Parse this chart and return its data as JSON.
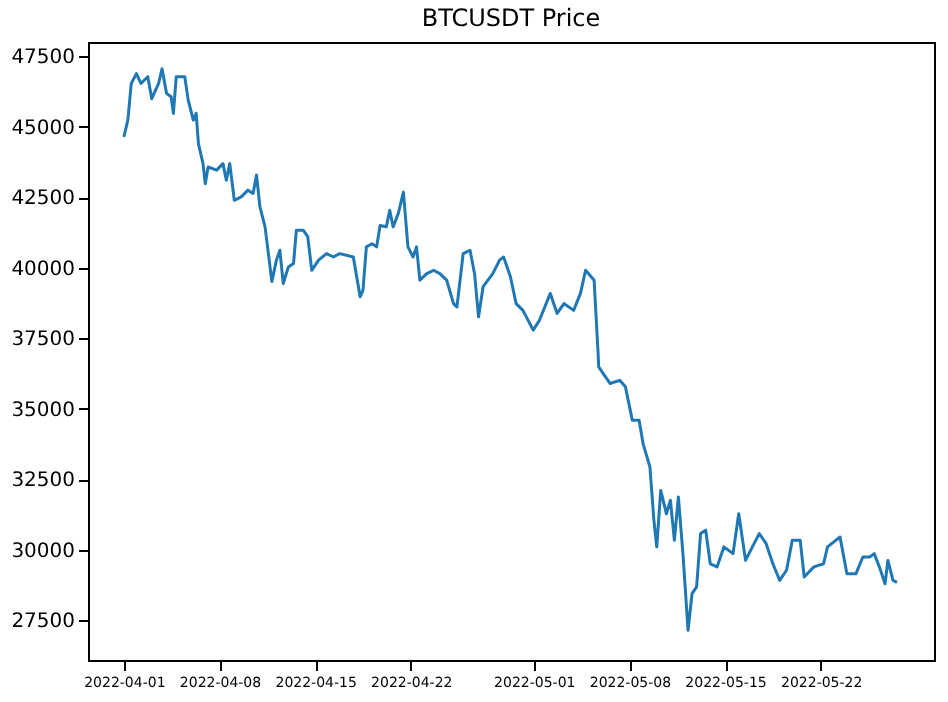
{
  "chart_data": {
    "type": "line",
    "title": "BTCUSDT Price",
    "x": [
      "2022-04-01T00:00",
      "2022-04-01T07:00",
      "2022-04-01T13:00",
      "2022-04-01T22:00",
      "2022-04-02T06:00",
      "2022-04-02T18:00",
      "2022-04-03T01:00",
      "2022-04-03T13:00",
      "2022-04-03T19:00",
      "2022-04-04T03:00",
      "2022-04-04T11:00",
      "2022-04-04T15:00",
      "2022-04-04T20:00",
      "2022-04-05T11:00",
      "2022-04-05T17:00",
      "2022-04-06T02:00",
      "2022-04-06T07:00",
      "2022-04-06T11:00",
      "2022-04-06T19:00",
      "2022-04-06T23:00",
      "2022-04-07T04:00",
      "2022-04-07T19:00",
      "2022-04-08T06:00",
      "2022-04-08T12:00",
      "2022-04-08T18:00",
      "2022-04-09T02:00",
      "2022-04-09T14:00",
      "2022-04-10T02:00",
      "2022-04-10T11:00",
      "2022-04-10T17:00",
      "2022-04-10T23:00",
      "2022-04-11T08:00",
      "2022-04-11T20:00",
      "2022-04-12T04:00",
      "2022-04-12T10:00",
      "2022-04-12T16:00",
      "2022-04-13T01:00",
      "2022-04-13T10:00",
      "2022-04-13T15:00",
      "2022-04-14T03:00",
      "2022-04-14T11:00",
      "2022-04-14T18:00",
      "2022-04-15T06:00",
      "2022-04-15T20:00",
      "2022-04-16T08:00",
      "2022-04-16T19:00",
      "2022-04-17T19:00",
      "2022-04-18T07:00",
      "2022-04-18T12:00",
      "2022-04-18T18:00",
      "2022-04-19T04:00",
      "2022-04-19T12:00",
      "2022-04-19T18:00",
      "2022-04-20T05:00",
      "2022-04-20T11:00",
      "2022-04-20T17:00",
      "2022-04-21T02:00",
      "2022-04-21T11:00",
      "2022-04-21T19:00",
      "2022-04-22T04:00",
      "2022-04-22T10:00",
      "2022-04-22T16:00",
      "2022-04-23T04:00",
      "2022-04-23T16:00",
      "2022-04-24T03:00",
      "2022-04-24T15:00",
      "2022-04-25T03:00",
      "2022-04-25T09:00",
      "2022-04-25T20:00",
      "2022-04-26T08:00",
      "2022-04-26T16:00",
      "2022-04-26T23:00",
      "2022-04-27T07:00",
      "2022-04-28T00:00",
      "2022-04-28T12:00",
      "2022-04-28T19:00",
      "2022-04-29T07:00",
      "2022-04-29T17:00",
      "2022-04-30T05:00",
      "2022-04-30T23:00",
      "2022-05-01T10:00",
      "2022-05-02T05:00",
      "2022-05-02T17:00",
      "2022-05-03T05:00",
      "2022-05-03T22:00",
      "2022-05-04T10:00",
      "2022-05-04T19:00",
      "2022-05-05T10:00",
      "2022-05-05T17:00",
      "2022-05-05T18:00",
      "2022-05-06T02:00",
      "2022-05-06T14:00",
      "2022-05-07T07:00",
      "2022-05-07T17:00",
      "2022-05-08T05:00",
      "2022-05-08T17:00",
      "2022-05-09T00:00",
      "2022-05-09T12:00",
      "2022-05-09T19:00",
      "2022-05-10T00:00",
      "2022-05-10T07:00",
      "2022-05-10T17:00",
      "2022-05-11T00:00",
      "2022-05-11T07:00",
      "2022-05-11T14:00",
      "2022-05-11T22:00",
      "2022-05-12T07:00",
      "2022-05-12T14:00",
      "2022-05-12T22:00",
      "2022-05-13T05:00",
      "2022-05-13T14:00",
      "2022-05-13T22:00",
      "2022-05-14T10:00",
      "2022-05-14T22:00",
      "2022-05-15T14:00",
      "2022-05-16T00:00",
      "2022-05-16T12:00",
      "2022-05-17T00:00",
      "2022-05-17T12:00",
      "2022-05-18T00:00",
      "2022-05-18T12:00",
      "2022-05-19T00:00",
      "2022-05-19T12:00",
      "2022-05-19T22:00",
      "2022-05-20T12:00",
      "2022-05-20T19:00",
      "2022-05-21T12:00",
      "2022-05-22T05:00",
      "2022-05-22T12:00",
      "2022-05-23T10:00",
      "2022-05-23T22:00",
      "2022-05-24T14:00",
      "2022-05-25T02:00",
      "2022-05-25T14:00",
      "2022-05-25T22:00",
      "2022-05-26T07:00",
      "2022-05-26T17:00",
      "2022-05-26T22:00",
      "2022-05-27T07:00",
      "2022-05-27T14:00"
    ],
    "series": [
      {
        "color": "#1f77b4",
        "values": [
          44640,
          45230,
          46530,
          46880,
          46530,
          46770,
          45990,
          46530,
          47050,
          46180,
          46060,
          45470,
          46770,
          46770,
          45940,
          45230,
          45470,
          44400,
          43690,
          42980,
          43570,
          43460,
          43690,
          43100,
          43690,
          42390,
          42510,
          42750,
          42630,
          43290,
          42160,
          41450,
          39510,
          40270,
          40620,
          39440,
          40030,
          40150,
          41330,
          41330,
          41100,
          39910,
          40270,
          40500,
          40380,
          40500,
          40380,
          38970,
          39210,
          40740,
          40850,
          40740,
          41500,
          41450,
          42040,
          41450,
          41920,
          42680,
          40740,
          40380,
          40740,
          39560,
          39790,
          39910,
          39790,
          39560,
          38730,
          38610,
          40500,
          40620,
          39790,
          38260,
          39330,
          39790,
          40270,
          40380,
          39680,
          38730,
          38490,
          37790,
          38140,
          39090,
          38380,
          38730,
          38490,
          39090,
          39910,
          39560,
          36960,
          36490,
          36250,
          35900,
          36010,
          35780,
          34600,
          34600,
          33770,
          32940,
          31050,
          30110,
          32110,
          31280,
          31760,
          30340,
          31880,
          29870,
          27150,
          28450,
          28690,
          30580,
          30700,
          29510,
          29400,
          30110,
          29870,
          31280,
          29630,
          30110,
          30580,
          30230,
          29510,
          28920,
          29280,
          30340,
          30340,
          29040,
          29400,
          29510,
          30110,
          30460,
          29160,
          29160,
          29750,
          29750,
          29870,
          29400,
          28800,
          29630,
          28920,
          28850
        ]
      }
    ],
    "xlim": [
      "2022-03-29T09:00",
      "2022-05-30T07:00"
    ],
    "xticks": [
      "2022-04-01",
      "2022-04-08",
      "2022-04-15",
      "2022-04-22",
      "2022-05-01",
      "2022-05-08",
      "2022-05-15",
      "2022-05-22"
    ],
    "ylim": [
      26100,
      48000
    ],
    "yticks": [
      27500,
      30000,
      32500,
      35000,
      37500,
      40000,
      42500,
      45000,
      47500
    ],
    "grid": false,
    "line_style": "solid",
    "marker": "none"
  }
}
